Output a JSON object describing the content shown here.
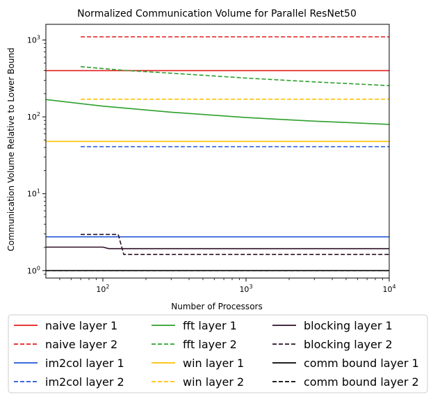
{
  "chart_data": {
    "type": "line",
    "title": "Normalized Communication Volume for Parallel ResNet50",
    "xlabel": "Number of Processors",
    "ylabel": "Communication Volume Relative to Lower Bound",
    "xscale": "log",
    "yscale": "log",
    "xlim": [
      40,
      10000
    ],
    "ylim": [
      0.8,
      1600
    ],
    "x_ticks": [
      {
        "value": 100,
        "base": "10",
        "exp": "2"
      },
      {
        "value": 1000,
        "base": "10",
        "exp": "3"
      },
      {
        "value": 10000,
        "base": "10",
        "exp": "4"
      }
    ],
    "y_ticks": [
      {
        "value": 1,
        "base": "10",
        "exp": "0"
      },
      {
        "value": 10,
        "base": "10",
        "exp": "1"
      },
      {
        "value": 100,
        "base": "10",
        "exp": "2"
      },
      {
        "value": 1000,
        "base": "10",
        "exp": "3"
      }
    ],
    "legend_position": "below",
    "series": [
      {
        "name": "naive layer 1",
        "color": "#e31a1c",
        "dash": "solid",
        "x": [
          40,
          10000
        ],
        "y": [
          400,
          400
        ]
      },
      {
        "name": "naive layer 2",
        "color": "#e31a1c",
        "dash": "dashed",
        "x": [
          70,
          10000
        ],
        "y": [
          1100,
          1100
        ]
      },
      {
        "name": "im2col layer 1",
        "color": "#1f56d6",
        "dash": "solid",
        "x": [
          40,
          10000
        ],
        "y": [
          2.75,
          2.75
        ]
      },
      {
        "name": "im2col layer 2",
        "color": "#1f56d6",
        "dash": "dashed",
        "x": [
          70,
          10000
        ],
        "y": [
          41,
          41
        ]
      },
      {
        "name": "fft layer 1",
        "color": "#2ca02c",
        "dash": "solid",
        "x": [
          40,
          100,
          300,
          1000,
          3000,
          10000
        ],
        "y": [
          168,
          138,
          115,
          98,
          88,
          80
        ]
      },
      {
        "name": "fft layer 2",
        "color": "#2ca02c",
        "dash": "dashed",
        "x": [
          70,
          150,
          300,
          1000,
          3000,
          10000
        ],
        "y": [
          450,
          400,
          370,
          320,
          285,
          255
        ]
      },
      {
        "name": "win layer 1",
        "color": "#ffc000",
        "dash": "solid",
        "x": [
          40,
          10000
        ],
        "y": [
          48,
          48
        ]
      },
      {
        "name": "win layer 2",
        "color": "#ffc000",
        "dash": "dashed",
        "x": [
          70,
          10000
        ],
        "y": [
          170,
          170
        ]
      },
      {
        "name": "blocking layer 1",
        "color": "#2b0f26",
        "dash": "solid",
        "x": [
          40,
          100,
          110,
          10000
        ],
        "y": [
          2.02,
          2.02,
          1.93,
          1.93
        ]
      },
      {
        "name": "blocking layer 2",
        "color": "#2b0f26",
        "dash": "dashed",
        "x": [
          70,
          128,
          140,
          10000
        ],
        "y": [
          2.95,
          2.95,
          1.62,
          1.62
        ]
      },
      {
        "name": "comm bound layer 1",
        "color": "#000000",
        "dash": "solid",
        "x": [
          40,
          10000
        ],
        "y": [
          1,
          1
        ]
      },
      {
        "name": "comm bound layer 2",
        "color": "#000000",
        "dash": "dashed",
        "x": [
          40,
          10000
        ],
        "y": [
          1,
          1
        ]
      }
    ]
  }
}
